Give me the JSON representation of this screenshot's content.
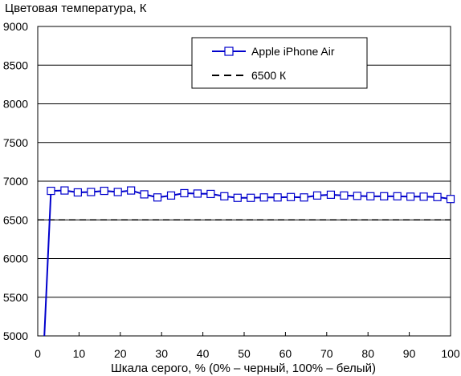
{
  "chart_data": {
    "type": "line",
    "ylabel": "Цветовая температура, К",
    "xlabel": "Шкала серого, % (0% – черный, 100% – белый)",
    "xlim": [
      0,
      100
    ],
    "ylim": [
      5000,
      9000
    ],
    "x_ticks": [
      0,
      10,
      20,
      30,
      40,
      50,
      60,
      70,
      80,
      90,
      100
    ],
    "y_ticks": [
      5000,
      5500,
      6000,
      6500,
      7000,
      7500,
      8000,
      8500,
      9000
    ],
    "grid": "horizontal",
    "legend": "top-right",
    "series": [
      {
        "name": "Apple iPhone Air",
        "color": "#0000cc",
        "marker": "square",
        "x": [
          1.6,
          3.2,
          6.5,
          9.7,
          12.9,
          16.1,
          19.4,
          22.6,
          25.8,
          29.0,
          32.3,
          35.5,
          38.7,
          41.9,
          45.2,
          48.4,
          51.6,
          54.8,
          58.1,
          61.3,
          64.5,
          67.7,
          71.0,
          74.2,
          77.4,
          80.6,
          83.9,
          87.1,
          90.3,
          93.5,
          96.8,
          100
        ],
        "y": [
          5000,
          6875,
          6880,
          6855,
          6860,
          6875,
          6860,
          6880,
          6830,
          6790,
          6815,
          6845,
          6840,
          6835,
          6805,
          6785,
          6785,
          6790,
          6790,
          6795,
          6790,
          6815,
          6825,
          6815,
          6810,
          6805,
          6805,
          6805,
          6800,
          6800,
          6795,
          6770
        ],
        "markers_from_index": 1
      },
      {
        "name": "6500 К",
        "color": "#000000",
        "dash": true,
        "x": [
          0,
          100
        ],
        "y": [
          6500,
          6500
        ]
      }
    ]
  }
}
